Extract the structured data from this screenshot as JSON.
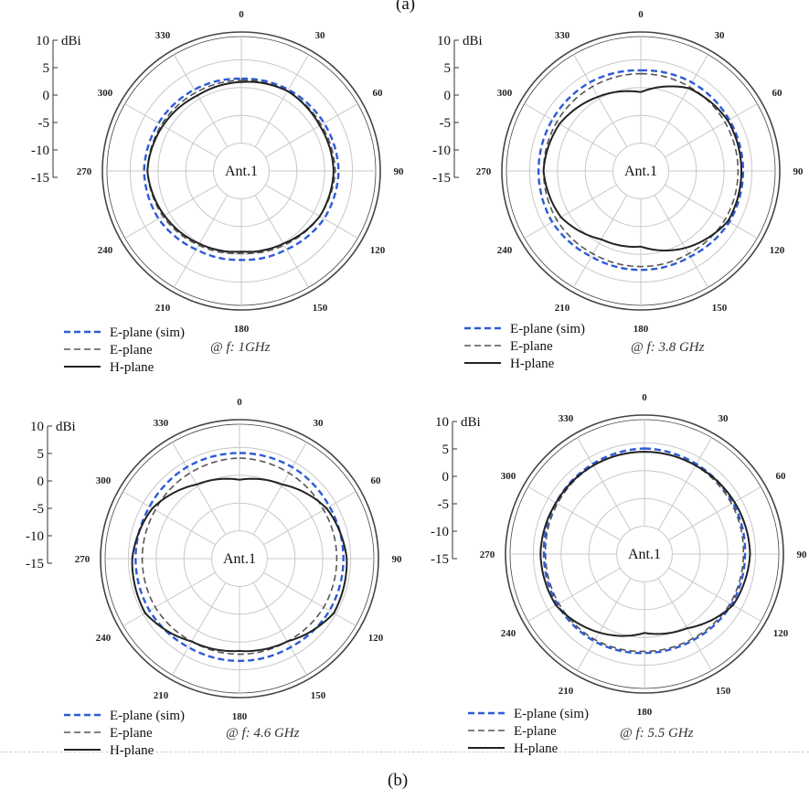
{
  "caption_top": "(a)",
  "caption_bottom": "(b)",
  "colors": {
    "e_sim": "#2d5bd6",
    "e_meas": "#555555",
    "h_meas": "#222222",
    "grid": "#c8c8c8",
    "outer": "#444444"
  },
  "chart_data": [
    {
      "type": "polar",
      "center_label": "Ant.1",
      "frequency_label": "@ f: 1GHz",
      "radial_axis": {
        "unit": "dBi",
        "ticks": [
          10,
          5,
          0,
          -5,
          -10,
          -15
        ],
        "range": [
          -15,
          10
        ]
      },
      "angle_ticks": [
        0,
        30,
        60,
        90,
        120,
        150,
        180,
        210,
        240,
        270,
        300,
        330
      ],
      "legend": [
        "E-plane (sim)",
        "E-plane",
        "H-plane"
      ],
      "series": [
        {
          "name": "E-plane (sim)",
          "angles": [
            0,
            30,
            60,
            90,
            120,
            150,
            180,
            210,
            240,
            270,
            300,
            330,
            360
          ],
          "values": [
            1,
            1.5,
            2,
            2.5,
            2,
            0.5,
            0,
            0.5,
            2,
            2.5,
            2,
            1.5,
            1
          ]
        },
        {
          "name": "E-plane",
          "angles": [
            0,
            30,
            60,
            90,
            120,
            150,
            180,
            210,
            240,
            270,
            300,
            330,
            360
          ],
          "values": [
            0.5,
            1,
            1,
            1.5,
            0.5,
            -1,
            -2,
            -1,
            0.5,
            1.5,
            1,
            0.5,
            0.5
          ]
        },
        {
          "name": "H-plane",
          "angles": [
            0,
            30,
            60,
            90,
            120,
            150,
            180,
            210,
            240,
            270,
            300,
            330,
            360
          ],
          "values": [
            0,
            1,
            0.5,
            1,
            0.5,
            -1.5,
            -2.5,
            -1.5,
            0,
            1.5,
            0.5,
            -0.5,
            0
          ]
        }
      ]
    },
    {
      "type": "polar",
      "center_label": "Ant.1",
      "frequency_label": "@ f: 3.8 GHz",
      "radial_axis": {
        "unit": "dBi",
        "ticks": [
          10,
          5,
          0,
          -5,
          -10,
          -15
        ],
        "range": [
          -15,
          10
        ]
      },
      "angle_ticks": [
        0,
        30,
        60,
        90,
        120,
        150,
        180,
        210,
        240,
        270,
        300,
        330
      ],
      "legend": [
        "E-plane (sim)",
        "E-plane",
        "H-plane"
      ],
      "series": [
        {
          "name": "E-plane (sim)",
          "angles": [
            0,
            30,
            60,
            90,
            120,
            150,
            180,
            210,
            240,
            270,
            300,
            330,
            360
          ],
          "values": [
            3.5,
            4,
            4,
            4,
            4,
            3,
            3,
            3,
            4,
            4,
            4,
            4,
            3.5
          ]
        },
        {
          "name": "E-plane",
          "angles": [
            0,
            30,
            60,
            90,
            120,
            150,
            180,
            210,
            240,
            270,
            300,
            330,
            360
          ],
          "values": [
            2.5,
            2.5,
            2.5,
            2.5,
            2.5,
            2,
            2,
            2,
            2.5,
            2.5,
            2.5,
            2.5,
            2.5
          ]
        },
        {
          "name": "H-plane",
          "angles": [
            0,
            30,
            60,
            90,
            120,
            150,
            180,
            210,
            240,
            270,
            300,
            330,
            360
          ],
          "values": [
            -3,
            2,
            3.5,
            3.5,
            3.5,
            0,
            -4,
            -3,
            1,
            2.5,
            1.5,
            -1,
            -3
          ]
        }
      ]
    },
    {
      "type": "polar",
      "center_label": "Ant.1",
      "frequency_label": "@ f: 4.6 GHz",
      "radial_axis": {
        "unit": "dBi",
        "ticks": [
          10,
          5,
          0,
          -5,
          -10,
          -15
        ],
        "range": [
          -15,
          10
        ]
      },
      "angle_ticks": [
        0,
        30,
        60,
        90,
        120,
        150,
        180,
        210,
        240,
        270,
        300,
        330
      ],
      "legend": [
        "E-plane (sim)",
        "E-plane",
        "H-plane"
      ],
      "series": [
        {
          "name": "E-plane (sim)",
          "angles": [
            0,
            30,
            60,
            90,
            120,
            150,
            180,
            210,
            240,
            270,
            300,
            330,
            360
          ],
          "values": [
            5,
            5,
            4.5,
            4.5,
            4.5,
            4,
            4,
            4,
            4.5,
            4.5,
            4.5,
            5,
            5
          ]
        },
        {
          "name": "E-plane",
          "angles": [
            0,
            30,
            60,
            90,
            120,
            150,
            180,
            210,
            240,
            270,
            300,
            330,
            360
          ],
          "values": [
            3.5,
            3,
            2.5,
            2.5,
            2.5,
            2,
            2,
            2,
            2.5,
            2.5,
            2.5,
            3,
            3.5
          ]
        },
        {
          "name": "H-plane",
          "angles": [
            0,
            30,
            60,
            90,
            120,
            150,
            180,
            210,
            240,
            270,
            300,
            330,
            360
          ],
          "values": [
            -3,
            -1,
            3.5,
            5.5,
            6,
            2,
            1,
            2,
            6,
            5.5,
            3.5,
            -1,
            -3
          ]
        }
      ]
    },
    {
      "type": "polar",
      "center_label": "Ant.1",
      "frequency_label": "@ f: 5.5 GHz",
      "radial_axis": {
        "unit": "dBi",
        "ticks": [
          10,
          5,
          0,
          -5,
          -10,
          -15
        ],
        "range": [
          -15,
          10
        ]
      },
      "angle_ticks": [
        0,
        30,
        60,
        90,
        120,
        150,
        180,
        210,
        240,
        270,
        300,
        330
      ],
      "legend": [
        "E-plane (sim)",
        "E-plane",
        "H-plane"
      ],
      "series": [
        {
          "name": "E-plane (sim)",
          "angles": [
            0,
            30,
            60,
            90,
            120,
            150,
            180,
            210,
            240,
            270,
            300,
            330,
            360
          ],
          "values": [
            5,
            4.5,
            4,
            3.5,
            3.5,
            3,
            3,
            3.5,
            3.5,
            3.5,
            4,
            4.5,
            5
          ]
        },
        {
          "name": "E-plane",
          "angles": [
            0,
            30,
            60,
            90,
            120,
            150,
            180,
            210,
            240,
            270,
            300,
            330,
            360
          ],
          "values": [
            4,
            4,
            3.5,
            3,
            3,
            2.5,
            2.5,
            3,
            3,
            3,
            3.5,
            4,
            4
          ]
        },
        {
          "name": "H-plane",
          "angles": [
            0,
            30,
            60,
            90,
            120,
            150,
            180,
            210,
            240,
            270,
            300,
            330,
            360
          ],
          "values": [
            4,
            4,
            4.5,
            5,
            4,
            -1,
            -3,
            0.5,
            4,
            4.5,
            4,
            4,
            4
          ]
        }
      ]
    }
  ]
}
